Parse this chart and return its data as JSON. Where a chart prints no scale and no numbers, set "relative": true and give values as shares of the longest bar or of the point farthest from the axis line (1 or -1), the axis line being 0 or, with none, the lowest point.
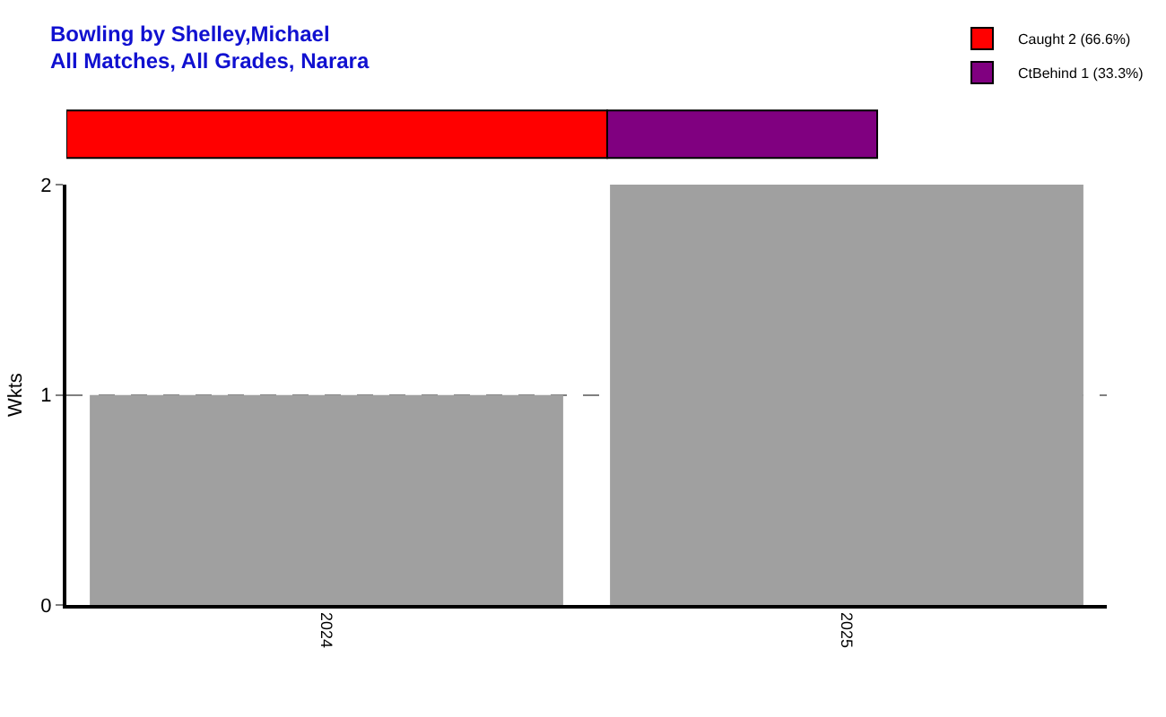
{
  "chart_data": [
    {
      "type": "bar",
      "title": "Bowling by Shelley,Michael",
      "subtitle": "All Matches, All Grades, Narara",
      "orientation": "horizontal",
      "stacked": true,
      "relative": true,
      "categories": [
        null
      ],
      "legend": "top right",
      "tick_labels": false,
      "series": [
        {
          "name": "Caught 2 (66.6%)",
          "color": "#ff0000",
          "values": [
            0.667
          ]
        },
        {
          "name": "CtBehind 1 (33.3%)",
          "color": "#800080",
          "values": [
            0.333
          ]
        }
      ]
    },
    {
      "type": "bar",
      "categories": [
        "2024",
        "2025"
      ],
      "values": [
        1,
        2
      ],
      "color": "#a0a0a0",
      "ylabel": "Wkts",
      "ylim": [
        0,
        2
      ],
      "yticks": [
        0,
        1,
        2
      ],
      "grid": "y"
    }
  ]
}
